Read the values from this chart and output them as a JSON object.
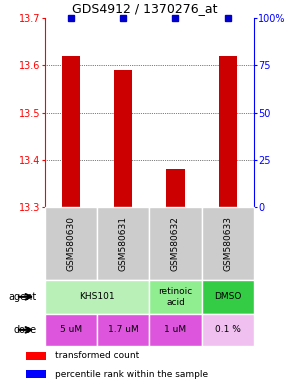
{
  "title": "GDS4912 / 1370276_at",
  "samples": [
    "GSM580630",
    "GSM580631",
    "GSM580632",
    "GSM580633"
  ],
  "red_values": [
    13.62,
    13.59,
    13.38,
    13.62
  ],
  "ylim_left": [
    13.3,
    13.7
  ],
  "ylim_right": [
    0,
    100
  ],
  "yticks_left": [
    13.3,
    13.4,
    13.5,
    13.6,
    13.7
  ],
  "yticks_right": [
    0,
    25,
    50,
    75,
    100
  ],
  "ytick_right_labels": [
    "0",
    "25",
    "50",
    "75",
    "100%"
  ],
  "dose_labels": [
    "5 uM",
    "1.7 uM",
    "1 uM",
    "0.1 %"
  ],
  "bar_color": "#cc0000",
  "dot_color": "#0000cc",
  "sample_bg_color": "#cccccc",
  "agent_spans": [
    [
      0,
      2,
      "KHS101",
      "#b8f0b8"
    ],
    [
      2,
      3,
      "retinoic\nacid",
      "#90ee90"
    ],
    [
      3,
      4,
      "DMSO",
      "#33cc44"
    ]
  ],
  "dose_colors": [
    "#dd55dd",
    "#dd55dd",
    "#dd55dd",
    "#f0c0f0"
  ]
}
